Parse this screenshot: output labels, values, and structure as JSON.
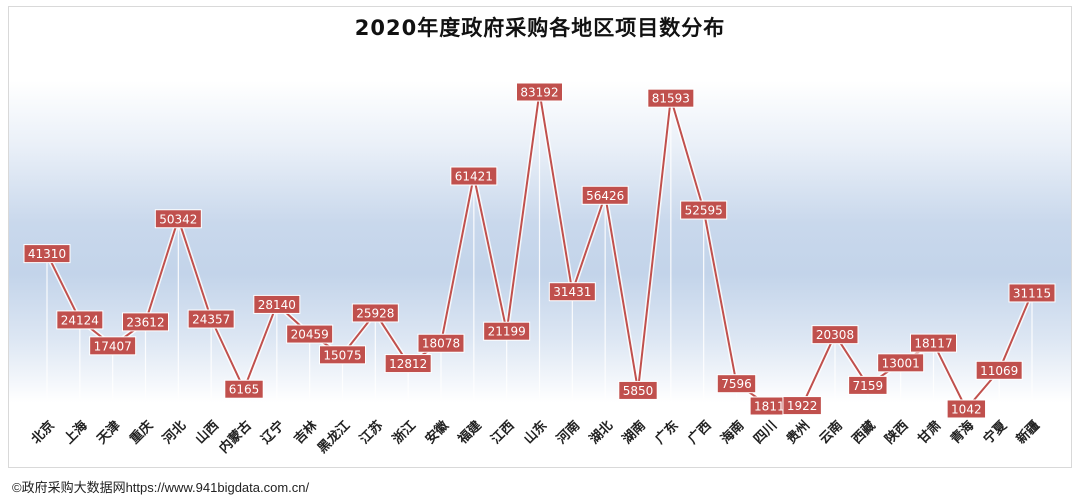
{
  "chart_data": {
    "type": "line",
    "title": "2020年度政府采购各地区项目数分布",
    "xlabel": "",
    "ylabel": "",
    "categories": [
      "北京",
      "上海",
      "天津",
      "重庆",
      "河北",
      "山西",
      "内蒙古",
      "辽宁",
      "吉林",
      "黑龙江",
      "江苏",
      "浙江",
      "安徽",
      "福建",
      "江西",
      "山东",
      "河南",
      "湖北",
      "湖南",
      "广东",
      "广西",
      "海南",
      "四川",
      "贵州",
      "云南",
      "西藏",
      "陕西",
      "甘肃",
      "青海",
      "宁夏",
      "新疆"
    ],
    "values": [
      41310,
      24124,
      17407,
      23612,
      50342,
      24357,
      6165,
      28140,
      20459,
      15075,
      25928,
      12812,
      18078,
      61421,
      21199,
      83192,
      31431,
      56426,
      5850,
      81593,
      52595,
      7596,
      1811,
      1922,
      20308,
      7159,
      13001,
      18117,
      1042,
      11069,
      31115
    ],
    "value_labels": [
      "41310",
      "24124",
      "17407",
      "23612",
      "50342",
      "24357",
      "6165",
      "28140",
      "20459",
      "15075",
      "25928",
      "12812",
      "18078",
      "61421",
      "21199",
      "83192",
      "31431",
      "56426",
      "5850",
      "81593",
      "52595",
      "7596",
      "1811",
      "1922",
      "20308",
      "7159",
      "13001",
      "18117",
      "1042",
      "11069",
      "31115"
    ],
    "grid": false,
    "legend": "none",
    "colors": {
      "line": "#c0504d",
      "label_fill": "#c0504d",
      "label_text": "#ffffff",
      "drop_line": "#ffffff"
    }
  },
  "footer": "©政府采购大数据网https://www.941bigdata.com.cn/"
}
